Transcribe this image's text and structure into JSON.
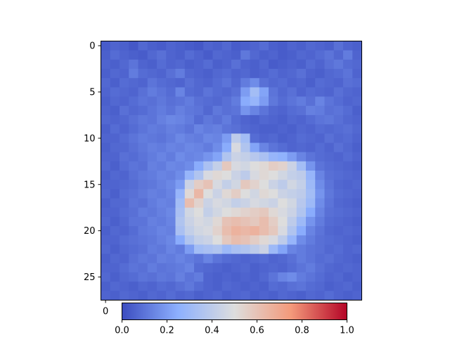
{
  "chart_data": {
    "type": "heatmap",
    "title": "",
    "xlabel": "",
    "ylabel": "",
    "rows": 28,
    "cols": 28,
    "colormap": "coolwarm",
    "vmin": 0.0,
    "vmax": 1.0,
    "colorbar": {
      "orientation": "horizontal",
      "position": "bottom",
      "ticks": [
        0.0,
        0.2,
        0.4,
        0.6,
        0.8,
        1.0
      ],
      "tick_labels": [
        "0.0",
        "0.2",
        "0.4",
        "0.6",
        "0.8",
        "1.0"
      ]
    },
    "y_ticks": [
      0,
      5,
      10,
      15,
      20,
      25
    ],
    "y_tick_labels": [
      "0",
      "5",
      "10",
      "15",
      "20",
      "25"
    ],
    "x_ticks": [
      0
    ],
    "x_tick_labels": [
      "0"
    ],
    "background_level": 0.05,
    "values": [
      [
        0.04,
        0.06,
        0.05,
        0.03,
        0.07,
        0.05,
        0.04,
        0.06,
        0.05,
        0.04,
        0.03,
        0.06,
        0.05,
        0.07,
        0.04,
        0.05,
        0.06,
        0.08,
        0.05,
        0.04,
        0.06,
        0.05,
        0.07,
        0.06,
        0.05,
        0.09,
        0.06,
        0.05
      ],
      [
        0.05,
        0.08,
        0.06,
        0.05,
        0.04,
        0.07,
        0.09,
        0.06,
        0.05,
        0.08,
        0.06,
        0.04,
        0.07,
        0.06,
        0.05,
        0.11,
        0.07,
        0.05,
        0.06,
        0.04,
        0.05,
        0.07,
        0.06,
        0.08,
        0.1,
        0.07,
        0.12,
        0.06
      ],
      [
        0.06,
        0.05,
        0.07,
        0.1,
        0.06,
        0.05,
        0.08,
        0.06,
        0.07,
        0.05,
        0.06,
        0.08,
        0.05,
        0.06,
        0.09,
        0.06,
        0.05,
        0.07,
        0.04,
        0.05,
        0.06,
        0.05,
        0.08,
        0.06,
        0.09,
        0.11,
        0.08,
        0.07
      ],
      [
        0.05,
        0.07,
        0.06,
        0.12,
        0.08,
        0.07,
        0.06,
        0.09,
        0.12,
        0.07,
        0.06,
        0.05,
        0.07,
        0.08,
        0.06,
        0.07,
        0.05,
        0.06,
        0.08,
        0.06,
        0.07,
        0.09,
        0.06,
        0.05,
        0.07,
        0.08,
        0.1,
        0.06
      ],
      [
        0.07,
        0.05,
        0.08,
        0.07,
        0.06,
        0.1,
        0.08,
        0.07,
        0.06,
        0.09,
        0.07,
        0.06,
        0.08,
        0.1,
        0.07,
        0.12,
        0.16,
        0.09,
        0.07,
        0.08,
        0.06,
        0.07,
        0.05,
        0.08,
        0.07,
        0.06,
        0.09,
        0.08
      ],
      [
        0.06,
        0.08,
        0.07,
        0.06,
        0.09,
        0.12,
        0.1,
        0.08,
        0.14,
        0.08,
        0.07,
        0.1,
        0.08,
        0.07,
        0.09,
        0.2,
        0.32,
        0.22,
        0.1,
        0.07,
        0.09,
        0.06,
        0.08,
        0.07,
        0.06,
        0.09,
        0.07,
        0.06
      ],
      [
        0.05,
        0.07,
        0.06,
        0.08,
        0.1,
        0.09,
        0.11,
        0.09,
        0.1,
        0.12,
        0.09,
        0.08,
        0.07,
        0.09,
        0.12,
        0.24,
        0.28,
        0.2,
        0.11,
        0.08,
        0.1,
        0.12,
        0.09,
        0.14,
        0.1,
        0.08,
        0.06,
        0.07
      ],
      [
        0.06,
        0.05,
        0.09,
        0.07,
        0.08,
        0.1,
        0.12,
        0.1,
        0.13,
        0.11,
        0.1,
        0.07,
        0.11,
        0.09,
        0.1,
        0.18,
        0.14,
        0.1,
        0.07,
        0.06,
        0.08,
        0.09,
        0.13,
        0.12,
        0.09,
        0.1,
        0.08,
        0.05
      ],
      [
        0.07,
        0.06,
        0.07,
        0.09,
        0.11,
        0.1,
        0.13,
        0.15,
        0.14,
        0.12,
        0.08,
        0.11,
        0.09,
        0.12,
        0.08,
        0.06,
        0.05,
        0.07,
        0.06,
        0.05,
        0.07,
        0.06,
        0.08,
        0.1,
        0.11,
        0.09,
        0.07,
        0.06
      ],
      [
        0.05,
        0.08,
        0.06,
        0.08,
        0.1,
        0.12,
        0.11,
        0.13,
        0.12,
        0.1,
        0.14,
        0.12,
        0.13,
        0.1,
        0.09,
        0.07,
        0.06,
        0.05,
        0.05,
        0.06,
        0.05,
        0.07,
        0.06,
        0.08,
        0.07,
        0.08,
        0.09,
        0.07
      ],
      [
        0.06,
        0.06,
        0.08,
        0.1,
        0.12,
        0.11,
        0.1,
        0.12,
        0.15,
        0.13,
        0.12,
        0.15,
        0.14,
        0.2,
        0.4,
        0.32,
        0.08,
        0.06,
        0.07,
        0.05,
        0.06,
        0.08,
        0.07,
        0.06,
        0.09,
        0.07,
        0.08,
        0.06
      ],
      [
        0.05,
        0.07,
        0.07,
        0.09,
        0.11,
        0.13,
        0.12,
        0.14,
        0.13,
        0.15,
        0.14,
        0.12,
        0.16,
        0.24,
        0.48,
        0.36,
        0.22,
        0.14,
        0.1,
        0.08,
        0.06,
        0.07,
        0.06,
        0.08,
        0.06,
        0.09,
        0.07,
        0.05
      ],
      [
        0.06,
        0.06,
        0.09,
        0.08,
        0.1,
        0.12,
        0.14,
        0.12,
        0.16,
        0.14,
        0.15,
        0.18,
        0.22,
        0.36,
        0.44,
        0.42,
        0.38,
        0.34,
        0.28,
        0.26,
        0.2,
        0.14,
        0.1,
        0.08,
        0.07,
        0.06,
        0.08,
        0.06
      ],
      [
        0.07,
        0.05,
        0.08,
        0.1,
        0.09,
        0.13,
        0.12,
        0.15,
        0.14,
        0.16,
        0.24,
        0.34,
        0.42,
        0.58,
        0.48,
        0.46,
        0.5,
        0.52,
        0.56,
        0.54,
        0.44,
        0.32,
        0.18,
        0.1,
        0.08,
        0.07,
        0.06,
        0.05
      ],
      [
        0.05,
        0.07,
        0.06,
        0.09,
        0.11,
        0.12,
        0.14,
        0.13,
        0.16,
        0.28,
        0.36,
        0.48,
        0.52,
        0.5,
        0.44,
        0.4,
        0.48,
        0.52,
        0.5,
        0.46,
        0.42,
        0.4,
        0.28,
        0.14,
        0.09,
        0.08,
        0.07,
        0.06
      ],
      [
        0.06,
        0.06,
        0.07,
        0.08,
        0.1,
        0.11,
        0.13,
        0.15,
        0.2,
        0.44,
        0.56,
        0.6,
        0.48,
        0.42,
        0.46,
        0.58,
        0.54,
        0.5,
        0.44,
        0.4,
        0.46,
        0.42,
        0.3,
        0.16,
        0.1,
        0.07,
        0.06,
        0.07
      ],
      [
        0.07,
        0.05,
        0.08,
        0.09,
        0.11,
        0.13,
        0.12,
        0.14,
        0.28,
        0.52,
        0.64,
        0.5,
        0.44,
        0.52,
        0.56,
        0.5,
        0.46,
        0.52,
        0.5,
        0.44,
        0.42,
        0.4,
        0.32,
        0.18,
        0.11,
        0.08,
        0.07,
        0.06
      ],
      [
        0.05,
        0.07,
        0.07,
        0.1,
        0.09,
        0.12,
        0.14,
        0.13,
        0.32,
        0.62,
        0.54,
        0.44,
        0.48,
        0.46,
        0.42,
        0.44,
        0.48,
        0.46,
        0.44,
        0.5,
        0.46,
        0.38,
        0.3,
        0.16,
        0.1,
        0.07,
        0.06,
        0.05
      ],
      [
        0.06,
        0.06,
        0.08,
        0.09,
        0.12,
        0.11,
        0.13,
        0.15,
        0.34,
        0.46,
        0.5,
        0.42,
        0.46,
        0.5,
        0.52,
        0.54,
        0.56,
        0.58,
        0.52,
        0.48,
        0.44,
        0.36,
        0.24,
        0.14,
        0.09,
        0.08,
        0.07,
        0.06
      ],
      [
        0.07,
        0.05,
        0.07,
        0.1,
        0.1,
        0.13,
        0.12,
        0.14,
        0.36,
        0.44,
        0.48,
        0.46,
        0.52,
        0.6,
        0.62,
        0.6,
        0.58,
        0.62,
        0.56,
        0.5,
        0.4,
        0.3,
        0.18,
        0.12,
        0.08,
        0.07,
        0.06,
        0.05
      ],
      [
        0.05,
        0.07,
        0.06,
        0.08,
        0.11,
        0.12,
        0.14,
        0.13,
        0.34,
        0.42,
        0.46,
        0.48,
        0.54,
        0.62,
        0.66,
        0.64,
        0.66,
        0.62,
        0.58,
        0.48,
        0.36,
        0.24,
        0.14,
        0.1,
        0.07,
        0.06,
        0.07,
        0.06
      ],
      [
        0.06,
        0.06,
        0.08,
        0.09,
        0.1,
        0.11,
        0.13,
        0.15,
        0.24,
        0.36,
        0.42,
        0.44,
        0.5,
        0.58,
        0.62,
        0.6,
        0.56,
        0.52,
        0.48,
        0.4,
        0.28,
        0.16,
        0.12,
        0.09,
        0.08,
        0.07,
        0.06,
        0.05
      ],
      [
        0.07,
        0.05,
        0.07,
        0.08,
        0.09,
        0.12,
        0.11,
        0.14,
        0.12,
        0.2,
        0.32,
        0.34,
        0.36,
        0.3,
        0.34,
        0.36,
        0.4,
        0.44,
        0.3,
        0.22,
        0.14,
        0.12,
        0.1,
        0.09,
        0.07,
        0.08,
        0.06,
        0.07
      ],
      [
        0.05,
        0.07,
        0.06,
        0.09,
        0.11,
        0.1,
        0.13,
        0.12,
        0.14,
        0.12,
        0.1,
        0.14,
        0.1,
        0.08,
        0.07,
        0.06,
        0.07,
        0.08,
        0.06,
        0.07,
        0.09,
        0.12,
        0.1,
        0.08,
        0.09,
        0.07,
        0.06,
        0.05
      ],
      [
        0.06,
        0.06,
        0.08,
        0.1,
        0.09,
        0.12,
        0.1,
        0.11,
        0.12,
        0.14,
        0.08,
        0.07,
        0.06,
        0.05,
        0.06,
        0.07,
        0.05,
        0.06,
        0.07,
        0.06,
        0.08,
        0.1,
        0.12,
        0.09,
        0.07,
        0.06,
        0.07,
        0.06
      ],
      [
        0.07,
        0.05,
        0.07,
        0.08,
        0.1,
        0.09,
        0.11,
        0.1,
        0.13,
        0.1,
        0.12,
        0.06,
        0.05,
        0.06,
        0.05,
        0.06,
        0.05,
        0.07,
        0.1,
        0.14,
        0.16,
        0.12,
        0.1,
        0.08,
        0.06,
        0.07,
        0.05,
        0.06
      ],
      [
        0.05,
        0.07,
        0.06,
        0.05,
        0.07,
        0.06,
        0.08,
        0.07,
        0.09,
        0.11,
        0.08,
        0.06,
        0.05,
        0.07,
        0.06,
        0.05,
        0.06,
        0.05,
        0.08,
        0.07,
        0.09,
        0.1,
        0.08,
        0.07,
        0.05,
        0.06,
        0.07,
        0.05
      ],
      [
        0.06,
        0.05,
        0.07,
        0.06,
        0.05,
        0.07,
        0.06,
        0.08,
        0.06,
        0.07,
        0.05,
        0.06,
        0.07,
        0.05,
        0.06,
        0.07,
        0.05,
        0.06,
        0.05,
        0.07,
        0.06,
        0.05,
        0.07,
        0.06,
        0.08,
        0.06,
        0.05,
        0.06
      ]
    ]
  }
}
